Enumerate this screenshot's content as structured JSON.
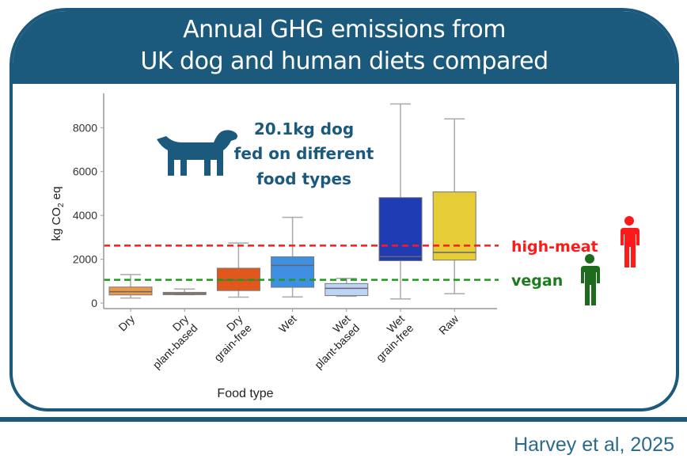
{
  "header": {
    "title_line1": "Annual GHG emissions from",
    "title_line2": "UK dog and human diets compared"
  },
  "annotation": {
    "line1": "20.1kg dog",
    "line2": "fed on different",
    "line3": "food types"
  },
  "citation": "Harvey et al, 2025",
  "colors": {
    "brand": "#1b5a7d",
    "high_meat": "#ff1a1a",
    "vegan": "#1e7a1e"
  },
  "chart_data": {
    "type": "box",
    "title": "Annual GHG emissions from UK dog and human diets compared",
    "xlabel": "Food type",
    "ylabel": "kg CO2 eq",
    "ylim": [
      0,
      9500
    ],
    "yticks": [
      0,
      2000,
      4000,
      6000,
      8000
    ],
    "grid": false,
    "categories": [
      {
        "line1": "Dry",
        "line2": "",
        "color": "#ec9a4c",
        "min": 230,
        "q1": 370,
        "median": 520,
        "q3": 730,
        "max": 1300
      },
      {
        "line1": "Dry",
        "line2": "plant-based",
        "color": "#d2a878",
        "min": 385,
        "q1": 385,
        "median": 430,
        "q3": 490,
        "max": 640
      },
      {
        "line1": "Dry",
        "line2": "grain-free",
        "color": "#e2581c",
        "min": 270,
        "q1": 570,
        "median": 1050,
        "q3": 1590,
        "max": 2740
      },
      {
        "line1": "Wet",
        "line2": "",
        "color": "#3f90e2",
        "min": 280,
        "q1": 720,
        "median": 1720,
        "q3": 2110,
        "max": 3910
      },
      {
        "line1": "Wet",
        "line2": "plant-based",
        "color": "#bcd5f6",
        "min": 310,
        "q1": 340,
        "median": 670,
        "q3": 890,
        "max": 1130
      },
      {
        "line1": "Wet",
        "line2": "grain-free",
        "color": "#1f3cb4",
        "min": 190,
        "q1": 1930,
        "median": 2120,
        "q3": 4810,
        "max": 9080
      },
      {
        "line1": "Raw",
        "line2": "",
        "color": "#e6cd38",
        "min": 430,
        "q1": 1960,
        "median": 2310,
        "q3": 5070,
        "max": 8400
      }
    ],
    "reference_lines": [
      {
        "label": "high-meat",
        "value": 2620,
        "color": "#ff1a1a"
      },
      {
        "label": "vegan",
        "value": 1060,
        "color": "#1e9a1e"
      }
    ]
  }
}
